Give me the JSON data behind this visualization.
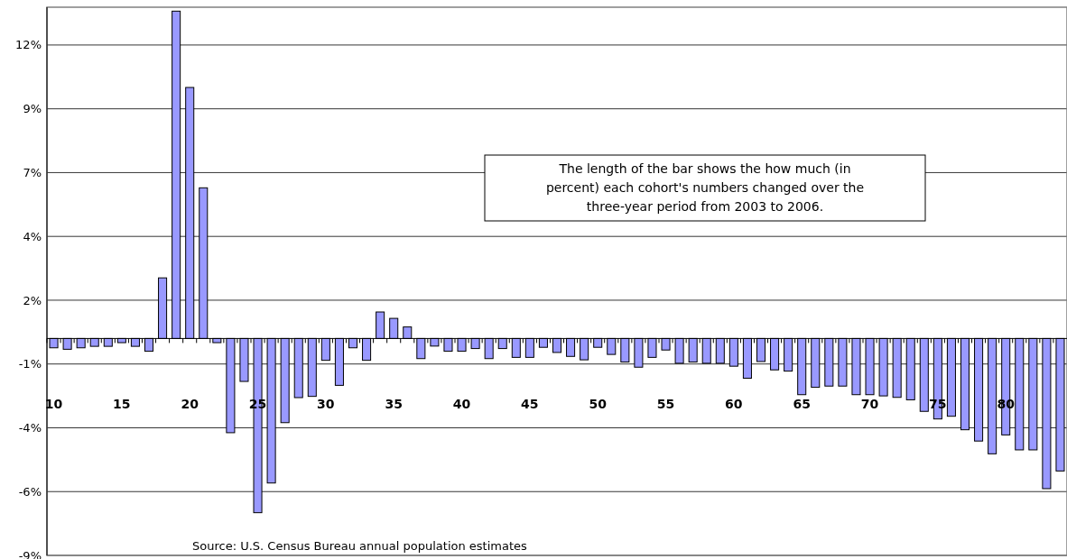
{
  "chart_data": {
    "type": "bar",
    "categories": [
      "10",
      null,
      null,
      null,
      null,
      "15",
      null,
      null,
      null,
      null,
      "20",
      null,
      null,
      null,
      null,
      "25",
      null,
      null,
      null,
      null,
      "30",
      null,
      null,
      null,
      null,
      "35",
      null,
      null,
      null,
      null,
      "40",
      null,
      null,
      null,
      null,
      "45",
      null,
      null,
      null,
      null,
      "50",
      null,
      null,
      null,
      null,
      "55",
      null,
      null,
      null,
      null,
      "60",
      null,
      null,
      null,
      null,
      "65",
      null,
      null,
      null,
      null,
      "70",
      null,
      null,
      null,
      null,
      "75",
      null,
      null,
      null,
      null,
      "80",
      null,
      null,
      null,
      null
    ],
    "values": [
      -0.38,
      -0.44,
      -0.38,
      -0.32,
      -0.32,
      -0.17,
      -0.32,
      -0.52,
      2.47,
      13.34,
      10.23,
      6.14,
      -0.17,
      -3.84,
      -1.75,
      -7.1,
      -5.89,
      -3.43,
      -2.41,
      -2.36,
      -0.89,
      -1.91,
      -0.38,
      -0.89,
      1.08,
      0.82,
      0.47,
      -0.82,
      -0.31,
      -0.52,
      -0.52,
      -0.41,
      -0.82,
      -0.41,
      -0.77,
      -0.77,
      -0.36,
      -0.57,
      -0.73,
      -0.87,
      -0.36,
      -0.65,
      -0.96,
      -1.17,
      -0.77,
      -0.47,
      -1.01,
      -0.96,
      -1.01,
      -1.01,
      -1.13,
      -1.62,
      -0.94,
      -1.28,
      -1.33,
      -2.29,
      -1.99,
      -1.94,
      -1.94,
      -2.29,
      -2.29,
      -2.34,
      -2.4,
      -2.5,
      -2.97,
      -3.28,
      -3.17,
      -3.72,
      -4.18,
      -4.7,
      -3.93,
      -4.54,
      -4.54,
      -6.12,
      -5.4
    ],
    "color": "#9999ff",
    "ylim": [
      -8.84,
      13.5
    ],
    "yticks": [
      {
        "value": -8.84,
        "label": "-9%"
      },
      {
        "value": -6.24,
        "label": "-6%"
      },
      {
        "value": -3.64,
        "label": "-4%"
      },
      {
        "value": -1.04,
        "label": "-1%"
      },
      {
        "value": 1.56,
        "label": "2%"
      },
      {
        "value": 4.16,
        "label": "4%"
      },
      {
        "value": 6.76,
        "label": "7%"
      },
      {
        "value": 9.36,
        "label": "9%"
      },
      {
        "value": 11.96,
        "label": "12%"
      }
    ],
    "grid": "y",
    "annotations": [
      "The length of the bar shows the how much (in percent) each cohort's numbers changed over the three-year period from 2003 to 2006.",
      "Source: U.S. Census Bureau annual population estimates"
    ]
  }
}
